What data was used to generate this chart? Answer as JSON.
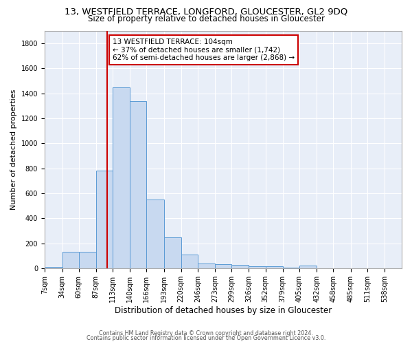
{
  "title_line1": "13, WESTFIELD TERRACE, LONGFORD, GLOUCESTER, GL2 9DQ",
  "title_line2": "Size of property relative to detached houses in Gloucester",
  "xlabel": "Distribution of detached houses by size in Gloucester",
  "ylabel": "Number of detached properties",
  "bar_color": "#c8d9f0",
  "bar_edge_color": "#5b9bd5",
  "plot_bg_color": "#e8eef8",
  "fig_bg_color": "#ffffff",
  "grid_color": "#ffffff",
  "categories": [
    "7sqm",
    "34sqm",
    "60sqm",
    "87sqm",
    "113sqm",
    "140sqm",
    "166sqm",
    "193sqm",
    "220sqm",
    "246sqm",
    "273sqm",
    "299sqm",
    "326sqm",
    "352sqm",
    "379sqm",
    "405sqm",
    "432sqm",
    "458sqm",
    "485sqm",
    "511sqm",
    "538sqm"
  ],
  "values": [
    10,
    130,
    130,
    780,
    1450,
    1340,
    550,
    245,
    110,
    40,
    30,
    25,
    15,
    15,
    2,
    20,
    0,
    0,
    0,
    0,
    0
  ],
  "ylim": [
    0,
    1900
  ],
  "yticks": [
    0,
    200,
    400,
    600,
    800,
    1000,
    1200,
    1400,
    1600,
    1800
  ],
  "red_line_x": 104,
  "bin_edges": [
    7,
    34,
    60,
    87,
    113,
    140,
    166,
    193,
    220,
    246,
    273,
    299,
    326,
    352,
    379,
    405,
    432,
    458,
    485,
    511,
    538,
    565
  ],
  "annotation_text": "13 WESTFIELD TERRACE: 104sqm\n← 37% of detached houses are smaller (1,742)\n62% of semi-detached houses are larger (2,868) →",
  "annotation_box_color": "#ffffff",
  "annotation_box_edge_color": "#cc0000",
  "red_line_color": "#cc0000",
  "footer_line1": "Contains HM Land Registry data © Crown copyright and database right 2024.",
  "footer_line2": "Contains public sector information licensed under the Open Government Licence v3.0.",
  "title1_fontsize": 9.5,
  "title2_fontsize": 8.5,
  "ylabel_fontsize": 8.0,
  "xlabel_fontsize": 8.5,
  "tick_fontsize": 7.0,
  "annot_fontsize": 7.5,
  "footer_fontsize": 5.8
}
